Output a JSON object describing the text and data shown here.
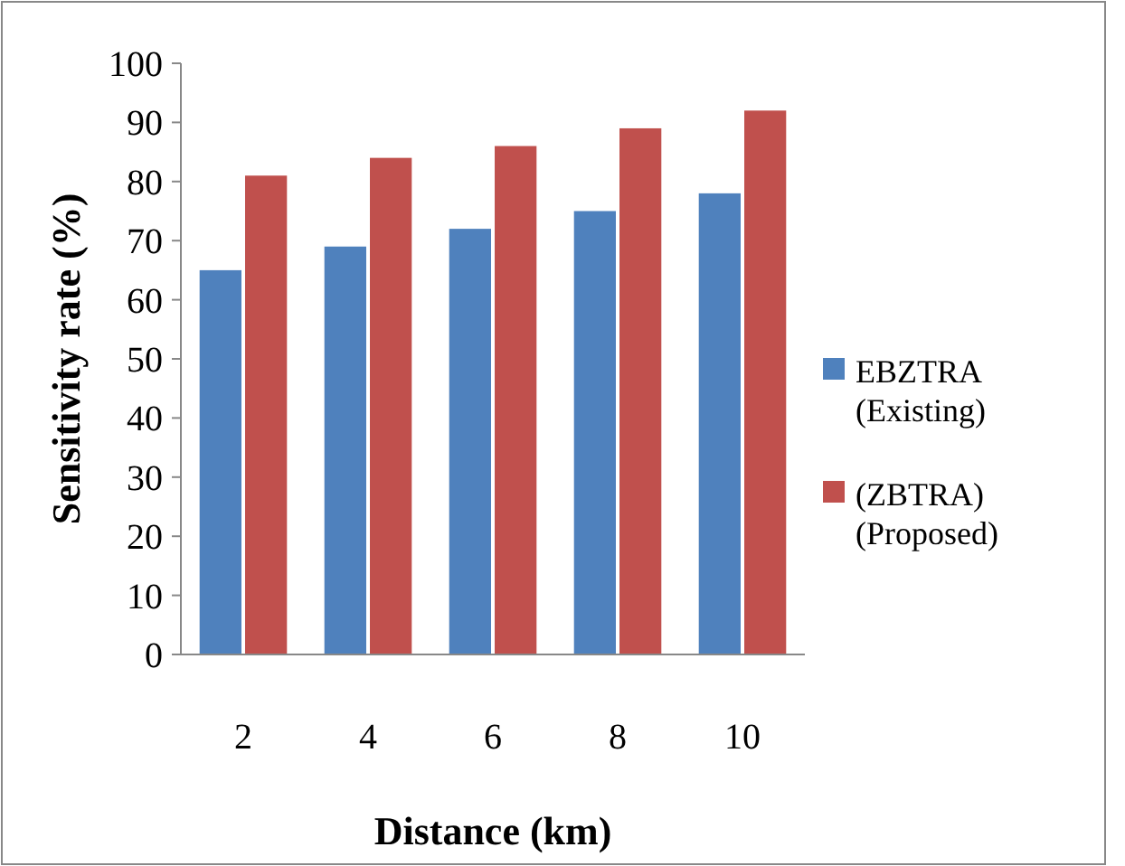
{
  "chart_data": {
    "type": "bar",
    "xlabel": "Distance (km)",
    "ylabel": "Sensitivity rate (%)",
    "categories": [
      "2",
      "4",
      "6",
      "8",
      "10"
    ],
    "series": [
      {
        "name": "EBZTRA (Existing)",
        "color": "#4f81bd",
        "values": [
          65,
          69,
          72,
          75,
          78
        ]
      },
      {
        "name": "(ZBTRA) (Proposed)",
        "color": "#c0504d",
        "values": [
          81,
          84,
          86,
          89,
          92
        ]
      }
    ],
    "ylim": [
      0,
      100
    ],
    "yticks": [
      0,
      10,
      20,
      30,
      40,
      50,
      60,
      70,
      80,
      90,
      100
    ],
    "grid": false,
    "legend": "right"
  }
}
